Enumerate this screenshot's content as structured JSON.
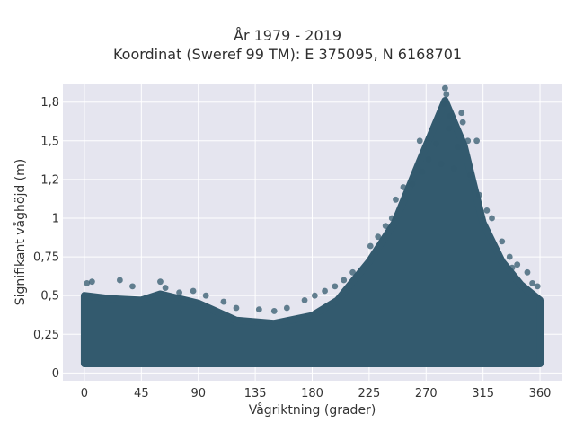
{
  "chart_data": {
    "type": "scatter",
    "title_lines": [
      "År 1979 - 2019",
      "Koordinat (Sweref 99 TM): E 375095, N 6168701"
    ],
    "xlabel": "Vågriktning (grader)",
    "ylabel": "Signifikant våghöjd (m)",
    "xlim": [
      -17,
      377
    ],
    "ylim": [
      -0.05,
      1.87
    ],
    "x_ticks": [
      0,
      45,
      90,
      135,
      180,
      225,
      270,
      315,
      360
    ],
    "x_tick_labels": [
      "0",
      "45",
      "90",
      "135",
      "180",
      "225",
      "270",
      "315",
      "360"
    ],
    "y_ticks": [
      0,
      0.25,
      0.5,
      0.75,
      1,
      1.25,
      1.5,
      1.75
    ],
    "y_tick_labels": [
      "0",
      "0,25",
      "0,5",
      "0,75",
      "1",
      "1,2",
      "1,5",
      "1,8"
    ],
    "grid": true,
    "legend": "none",
    "marker_color": "#335a6e",
    "plot_background": "#e5e5ef",
    "envelope_upper": [
      {
        "x": 0,
        "y": 0.58
      },
      {
        "x": 20,
        "y": 0.56
      },
      {
        "x": 45,
        "y": 0.55
      },
      {
        "x": 60,
        "y": 0.59
      },
      {
        "x": 90,
        "y": 0.53
      },
      {
        "x": 120,
        "y": 0.42
      },
      {
        "x": 150,
        "y": 0.4
      },
      {
        "x": 180,
        "y": 0.45
      },
      {
        "x": 200,
        "y": 0.55
      },
      {
        "x": 225,
        "y": 0.8
      },
      {
        "x": 245,
        "y": 1.05
      },
      {
        "x": 265,
        "y": 1.45
      },
      {
        "x": 285,
        "y": 1.84
      },
      {
        "x": 300,
        "y": 1.55
      },
      {
        "x": 315,
        "y": 1.05
      },
      {
        "x": 330,
        "y": 0.8
      },
      {
        "x": 345,
        "y": 0.65
      },
      {
        "x": 360,
        "y": 0.55
      }
    ],
    "points": [
      {
        "x": 285,
        "y": 1.84
      },
      {
        "x": 286,
        "y": 1.8
      },
      {
        "x": 284,
        "y": 1.74
      },
      {
        "x": 298,
        "y": 1.68
      },
      {
        "x": 289,
        "y": 1.66
      },
      {
        "x": 288,
        "y": 1.58
      },
      {
        "x": 299,
        "y": 1.62
      },
      {
        "x": 265,
        "y": 1.5
      },
      {
        "x": 278,
        "y": 1.48
      },
      {
        "x": 303,
        "y": 1.5
      },
      {
        "x": 295,
        "y": 1.46
      },
      {
        "x": 310,
        "y": 1.5
      },
      {
        "x": 272,
        "y": 1.38
      },
      {
        "x": 282,
        "y": 1.35
      },
      {
        "x": 292,
        "y": 1.32
      },
      {
        "x": 267,
        "y": 1.3
      },
      {
        "x": 305,
        "y": 1.28
      },
      {
        "x": 259,
        "y": 1.22
      },
      {
        "x": 252,
        "y": 1.2
      },
      {
        "x": 246,
        "y": 1.12
      },
      {
        "x": 312,
        "y": 1.15
      },
      {
        "x": 318,
        "y": 1.05
      },
      {
        "x": 322,
        "y": 1.0
      },
      {
        "x": 243,
        "y": 1.0
      },
      {
        "x": 238,
        "y": 0.95
      },
      {
        "x": 330,
        "y": 0.85
      },
      {
        "x": 226,
        "y": 0.82
      },
      {
        "x": 232,
        "y": 0.88
      },
      {
        "x": 336,
        "y": 0.75
      },
      {
        "x": 342,
        "y": 0.7
      },
      {
        "x": 338,
        "y": 0.68
      },
      {
        "x": 350,
        "y": 0.65
      },
      {
        "x": 358,
        "y": 0.56
      },
      {
        "x": 354,
        "y": 0.58
      },
      {
        "x": 212,
        "y": 0.65
      },
      {
        "x": 205,
        "y": 0.6
      },
      {
        "x": 198,
        "y": 0.56
      },
      {
        "x": 190,
        "y": 0.53
      },
      {
        "x": 182,
        "y": 0.5
      },
      {
        "x": 174,
        "y": 0.47
      },
      {
        "x": 2,
        "y": 0.58
      },
      {
        "x": 6,
        "y": 0.59
      },
      {
        "x": 28,
        "y": 0.6
      },
      {
        "x": 38,
        "y": 0.56
      },
      {
        "x": 60,
        "y": 0.59
      },
      {
        "x": 64,
        "y": 0.55
      },
      {
        "x": 75,
        "y": 0.52
      },
      {
        "x": 86,
        "y": 0.53
      },
      {
        "x": 96,
        "y": 0.5
      },
      {
        "x": 110,
        "y": 0.46
      },
      {
        "x": 120,
        "y": 0.42
      },
      {
        "x": 138,
        "y": 0.41
      },
      {
        "x": 150,
        "y": 0.4
      },
      {
        "x": 160,
        "y": 0.42
      }
    ]
  }
}
